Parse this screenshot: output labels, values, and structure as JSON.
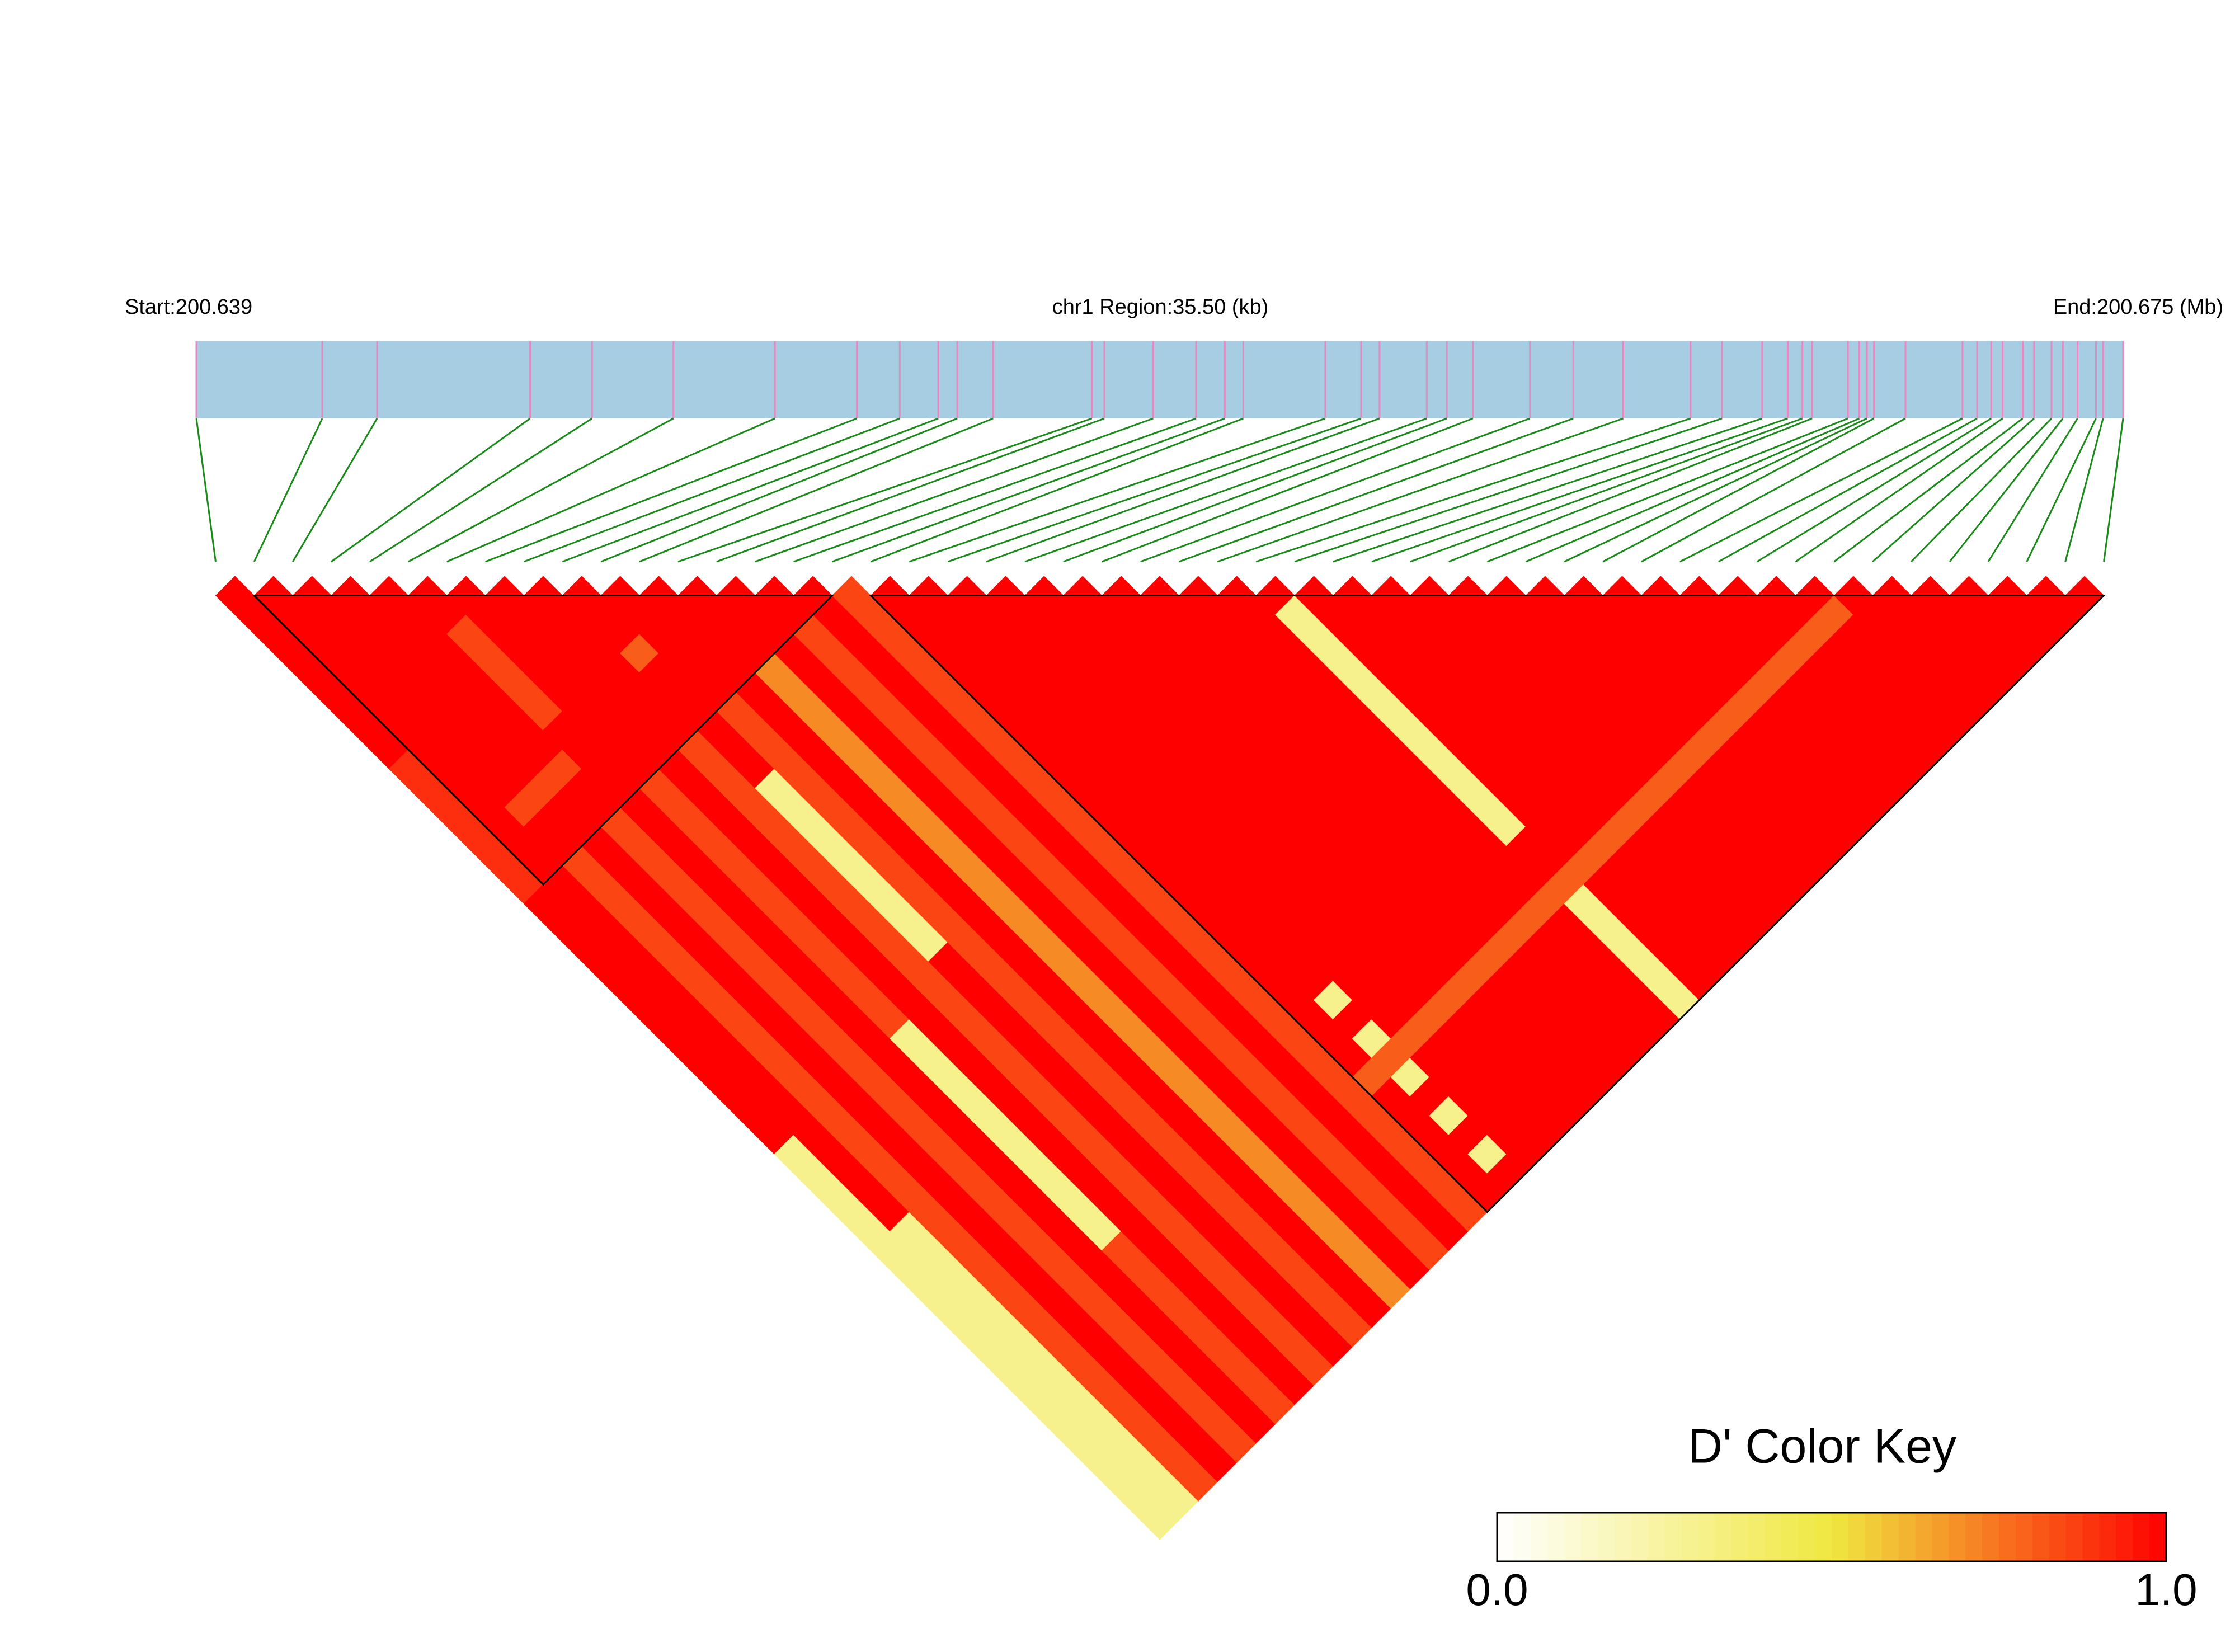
{
  "chart_data": {
    "type": "ld_heatmap",
    "start_label": "Start:200.639",
    "region_label": "chr1 Region:35.50 (kb)",
    "end_label": "End:200.675 (Mb)",
    "xlim": [
      200.639,
      200.6745
    ],
    "positions": [
      200.639,
      200.64132,
      200.64233,
      200.64515,
      200.64629,
      200.64779,
      200.64966,
      200.65117,
      200.65196,
      200.65267,
      200.65302,
      200.65368,
      200.6555,
      200.65573,
      200.65663,
      200.65742,
      200.65795,
      200.65829,
      200.6598,
      200.66046,
      200.6608,
      200.66167,
      200.66204,
      200.66252,
      200.66357,
      200.66437,
      200.66529,
      200.66653,
      200.66711,
      200.66785,
      200.66832,
      200.66859,
      200.66877,
      200.66943,
      200.66964,
      200.66978,
      200.66991,
      200.67049,
      200.67154,
      200.67181,
      200.67207,
      200.67228,
      200.67265,
      200.67286,
      200.67318,
      200.67339,
      200.67366,
      200.674,
      200.67413,
      200.6745
    ],
    "blocks": [
      [
        1,
        16
      ],
      [
        17,
        49
      ]
    ],
    "dprime": [
      [
        1
      ],
      [
        1,
        1
      ],
      [
        1,
        1,
        1
      ],
      [
        1,
        1,
        1,
        1
      ],
      [
        1,
        1,
        1,
        1,
        1
      ],
      [
        1,
        1,
        1,
        1,
        1,
        1
      ],
      [
        1,
        1,
        1,
        1,
        1,
        1,
        1
      ],
      [
        1,
        1,
        1,
        1,
        1,
        0.85,
        1,
        1
      ],
      [
        1,
        1,
        1,
        1,
        1,
        0.85,
        1,
        1,
        1
      ],
      [
        0.9,
        1,
        1,
        1,
        1,
        0.85,
        1,
        1,
        1,
        1
      ],
      [
        0.9,
        1,
        1,
        1,
        1,
        0.85,
        1,
        1,
        1,
        1,
        1
      ],
      [
        0.9,
        1,
        1,
        1,
        1,
        0.85,
        1,
        1,
        1,
        1,
        1,
        1
      ],
      [
        0.9,
        1,
        1,
        1,
        1,
        1,
        1,
        1,
        1,
        0.8,
        1,
        1,
        1
      ],
      [
        0.9,
        1,
        0.85,
        0.85,
        0.85,
        1,
        1,
        1,
        1,
        1,
        1,
        1,
        1,
        1
      ],
      [
        0.9,
        1,
        1,
        1,
        1,
        1,
        1,
        1,
        1,
        1,
        1,
        1,
        1,
        1,
        1
      ],
      [
        0.9,
        1,
        1,
        1,
        1,
        1,
        1,
        1,
        1,
        1,
        1,
        1,
        1,
        1,
        1,
        1
      ],
      [
        1,
        1,
        0.85,
        1,
        0.85,
        1,
        0.85,
        1,
        0.85,
        1,
        0.85,
        1,
        0.7,
        1,
        0.85,
        1,
        0.85
      ],
      [
        1,
        1,
        0.85,
        1,
        0.85,
        1,
        0.85,
        1,
        0.85,
        1,
        0.85,
        1,
        0.7,
        1,
        0.85,
        1,
        0.85,
        1
      ],
      [
        1,
        1,
        0.85,
        1,
        0.85,
        1,
        0.85,
        1,
        0.85,
        1,
        0.85,
        1,
        0.7,
        1,
        0.85,
        1,
        0.85,
        1,
        1
      ],
      [
        1,
        1,
        0.85,
        1,
        0.85,
        1,
        0.85,
        1,
        0.85,
        0.3,
        0.85,
        1,
        0.7,
        1,
        0.85,
        1,
        0.85,
        1,
        1,
        1
      ],
      [
        1,
        1,
        0.85,
        1,
        0.85,
        1,
        0.85,
        1,
        0.85,
        0.3,
        0.85,
        1,
        0.7,
        1,
        0.85,
        1,
        0.85,
        1,
        1,
        1,
        1
      ],
      [
        1,
        1,
        0.85,
        1,
        0.85,
        1,
        0.85,
        1,
        0.85,
        0.3,
        0.85,
        1,
        0.7,
        1,
        0.85,
        1,
        0.85,
        1,
        1,
        1,
        1,
        1
      ],
      [
        1,
        1,
        0.85,
        1,
        0.85,
        1,
        0.85,
        1,
        0.85,
        0.3,
        0.85,
        1,
        0.7,
        1,
        0.85,
        1,
        0.85,
        1,
        1,
        1,
        1,
        1,
        1
      ],
      [
        1,
        1,
        0.85,
        1,
        0.85,
        1,
        0.85,
        1,
        0.85,
        0.3,
        0.85,
        1,
        0.7,
        1,
        0.85,
        1,
        0.85,
        1,
        1,
        1,
        1,
        1,
        1,
        1
      ],
      [
        1,
        1,
        0.85,
        1,
        0.85,
        1,
        0.85,
        1,
        0.85,
        0.3,
        0.85,
        1,
        0.7,
        1,
        0.85,
        1,
        0.85,
        1,
        1,
        1,
        1,
        1,
        1,
        1,
        1
      ],
      [
        1,
        1,
        0.85,
        1,
        0.85,
        1,
        0.85,
        1,
        0.85,
        0.3,
        0.85,
        1,
        0.7,
        1,
        0.85,
        1,
        0.85,
        1,
        1,
        1,
        1,
        1,
        1,
        1,
        1,
        1
      ],
      [
        1,
        1,
        0.85,
        1,
        0.85,
        1,
        0.85,
        1,
        0.85,
        0.3,
        0.85,
        1,
        0.7,
        1,
        0.85,
        1,
        0.85,
        1,
        1,
        1,
        1,
        1,
        1,
        1,
        1,
        1,
        1
      ],
      [
        1,
        1,
        0.85,
        1,
        0.85,
        1,
        0.85,
        1,
        0.85,
        0.3,
        0.85,
        1,
        0.7,
        1,
        0.85,
        1,
        0.85,
        1,
        1,
        1,
        1,
        1,
        1,
        1,
        1,
        1,
        1,
        1
      ],
      [
        1,
        1,
        0.85,
        1,
        0.85,
        1,
        0.85,
        1,
        0.85,
        1,
        0.85,
        1,
        0.7,
        1,
        0.85,
        1,
        0.85,
        1,
        1,
        1,
        1,
        1,
        1,
        1,
        1,
        1,
        1,
        0.3,
        1
      ],
      [
        0.3,
        1,
        0.85,
        1,
        0.85,
        1,
        0.3,
        1,
        0.85,
        1,
        0.85,
        1,
        0.7,
        1,
        0.85,
        1,
        0.85,
        1,
        1,
        1,
        1,
        1,
        1,
        1,
        1,
        1,
        1,
        0.3,
        1,
        1
      ],
      [
        0.3,
        1,
        0.85,
        1,
        0.85,
        1,
        0.3,
        1,
        0.85,
        1,
        0.85,
        1,
        0.7,
        1,
        0.85,
        1,
        0.85,
        1,
        1,
        1,
        1,
        1,
        1,
        1,
        1,
        1,
        1,
        0.3,
        1,
        1,
        1
      ],
      [
        0.3,
        1,
        0.85,
        1,
        0.85,
        1,
        0.3,
        1,
        0.85,
        1,
        0.85,
        1,
        0.7,
        1,
        0.85,
        1,
        0.85,
        1,
        1,
        1,
        1,
        1,
        1,
        1,
        1,
        1,
        1,
        0.3,
        1,
        1,
        1,
        1
      ],
      [
        0.3,
        1,
        0.85,
        1,
        0.85,
        1,
        0.3,
        1,
        0.85,
        1,
        0.85,
        1,
        0.7,
        1,
        0.85,
        1,
        0.85,
        1,
        1,
        1,
        1,
        1,
        1,
        1,
        1,
        1,
        1,
        0.3,
        1,
        1,
        1,
        1,
        1
      ],
      [
        0.3,
        1,
        0.85,
        1,
        0.85,
        1,
        0.3,
        1,
        0.85,
        1,
        0.85,
        1,
        0.7,
        1,
        0.85,
        1,
        0.85,
        1,
        1,
        1,
        1,
        1,
        1,
        1,
        1,
        1,
        1,
        0.3,
        1,
        1,
        1,
        1,
        1,
        1
      ],
      [
        0.3,
        0.3,
        0.85,
        1,
        0.85,
        1,
        0.3,
        1,
        0.85,
        1,
        0.85,
        1,
        0.7,
        1,
        0.85,
        1,
        0.85,
        1,
        1,
        1,
        1,
        1,
        1,
        1,
        1,
        1,
        1,
        0.3,
        1,
        1,
        1,
        1,
        1,
        1,
        1
      ],
      [
        0.3,
        0.3,
        0.85,
        1,
        0.85,
        1,
        0.3,
        1,
        0.85,
        1,
        0.85,
        1,
        0.7,
        1,
        0.85,
        1,
        0.85,
        1,
        1,
        1,
        1,
        1,
        1,
        1,
        1,
        1,
        1,
        0.3,
        1,
        1,
        1,
        1,
        1,
        1,
        1,
        1
      ],
      [
        0.3,
        0.3,
        0.85,
        1,
        0.85,
        1,
        0.3,
        1,
        0.85,
        1,
        0.85,
        1,
        0.7,
        1,
        0.85,
        1,
        0.85,
        1,
        1,
        1,
        1,
        1,
        1,
        1,
        1,
        1,
        1,
        0.3,
        1,
        1,
        1,
        1,
        1,
        1,
        1,
        1,
        1
      ],
      [
        0.3,
        0.3,
        0.85,
        1,
        0.85,
        1,
        0.3,
        1,
        0.85,
        1,
        0.85,
        1,
        0.7,
        1,
        0.85,
        1,
        0.85,
        1,
        1,
        1,
        1,
        1,
        1,
        1,
        1,
        1,
        1,
        0.3,
        1,
        1,
        1,
        1,
        1,
        1,
        1,
        1,
        1,
        1
      ],
      [
        0.3,
        0.3,
        0.85,
        1,
        0.85,
        1,
        0.3,
        1,
        0.85,
        1,
        0.85,
        1,
        0.7,
        1,
        0.85,
        1,
        0.85,
        1,
        1,
        1,
        1,
        1,
        1,
        1,
        1,
        1,
        1,
        0.3,
        1,
        1,
        1,
        1,
        1,
        1,
        1,
        1,
        1,
        1,
        1
      ],
      [
        0.3,
        0.3,
        0.85,
        1,
        0.85,
        1,
        0.3,
        1,
        0.85,
        1,
        0.85,
        1,
        0.7,
        1,
        0.85,
        1,
        0.85,
        1,
        0.3,
        1,
        1,
        1,
        1,
        1,
        1,
        1,
        1,
        0.3,
        1,
        1,
        1,
        1,
        1,
        1,
        1,
        1,
        1,
        1,
        1,
        1
      ],
      [
        0.3,
        0.3,
        0.85,
        1,
        0.85,
        1,
        0.85,
        1,
        0.85,
        1,
        0.85,
        1,
        0.7,
        1,
        0.85,
        1,
        0.85,
        1,
        1,
        1,
        1,
        1,
        1,
        1,
        1,
        1,
        1,
        1,
        1,
        1,
        1,
        1,
        1,
        1,
        1,
        1,
        1,
        1,
        1,
        1,
        1
      ],
      [
        0.3,
        0.3,
        0.85,
        1,
        0.85,
        1,
        0.85,
        1,
        0.85,
        1,
        0.85,
        1,
        0.7,
        1,
        0.85,
        1,
        0.85,
        1,
        0.3,
        1,
        1,
        1,
        1,
        1,
        1,
        1,
        1,
        1,
        1,
        1,
        1,
        1,
        1,
        1,
        1,
        1,
        1,
        1,
        1,
        1,
        1,
        1
      ],
      [
        0.3,
        0.3,
        0.85,
        1,
        0.85,
        1,
        0.85,
        1,
        0.85,
        1,
        0.85,
        1,
        0.7,
        1,
        0.85,
        1,
        0.85,
        0.8,
        0.8,
        0.8,
        0.8,
        0.8,
        0.8,
        0.8,
        0.8,
        0.8,
        0.8,
        0.8,
        0.8,
        0.8,
        0.8,
        0.8,
        0.8,
        0.8,
        0.8,
        0.8,
        0.8,
        0.8,
        0.8,
        0.8,
        0.8,
        0.8,
        1
      ],
      [
        0.3,
        0.3,
        0.85,
        1,
        0.85,
        1,
        0.85,
        1,
        0.85,
        1,
        0.85,
        1,
        0.7,
        1,
        0.85,
        1,
        0.85,
        1,
        0.3,
        1,
        1,
        1,
        1,
        1,
        1,
        1,
        1,
        0.3,
        1,
        1,
        1,
        1,
        1,
        1,
        1,
        1,
        1,
        1,
        1,
        1,
        1,
        1,
        1,
        1
      ],
      [
        0.3,
        0.3,
        0.85,
        1,
        0.85,
        1,
        0.85,
        1,
        0.85,
        1,
        0.85,
        1,
        0.7,
        1,
        0.85,
        1,
        0.85,
        1,
        1,
        1,
        1,
        1,
        1,
        1,
        1,
        1,
        1,
        0.3,
        1,
        1,
        1,
        1,
        1,
        1,
        1,
        1,
        1,
        1,
        1,
        1,
        1,
        1,
        1,
        1,
        1
      ],
      [
        0.3,
        0.3,
        0.85,
        1,
        0.85,
        1,
        0.85,
        1,
        0.85,
        1,
        0.85,
        1,
        0.7,
        1,
        0.85,
        1,
        0.85,
        1,
        0.3,
        1,
        1,
        1,
        1,
        1,
        1,
        1,
        1,
        0.3,
        1,
        1,
        1,
        1,
        1,
        1,
        1,
        1,
        1,
        1,
        1,
        1,
        1,
        1,
        1,
        1,
        1,
        1
      ],
      [
        0.3,
        0.3,
        0.85,
        1,
        0.85,
        1,
        0.85,
        1,
        0.85,
        1,
        0.85,
        1,
        0.7,
        1,
        0.85,
        1,
        0.85,
        1,
        1,
        1,
        1,
        1,
        1,
        1,
        1,
        1,
        1,
        0.3,
        1,
        1,
        1,
        1,
        1,
        1,
        1,
        1,
        1,
        1,
        1,
        1,
        1,
        1,
        1,
        1,
        1,
        1,
        1
      ],
      [
        0.3,
        0.3,
        0.85,
        1,
        0.85,
        1,
        0.85,
        1,
        0.85,
        1,
        0.85,
        1,
        0.7,
        1,
        0.85,
        1,
        0.85,
        1,
        0.3,
        1,
        1,
        1,
        1,
        1,
        1,
        1,
        1,
        0.3,
        1,
        1,
        1,
        1,
        1,
        1,
        1,
        1,
        1,
        1,
        1,
        1,
        1,
        1,
        1,
        1,
        1,
        1,
        1,
        1
      ],
      [
        0.3,
        0.3,
        0.85,
        1,
        0.85,
        1,
        0.85,
        1,
        0.85,
        1,
        0.85,
        1,
        0.7,
        1,
        0.85,
        1,
        0.85,
        1,
        1,
        1,
        1,
        1,
        1,
        1,
        1,
        1,
        1,
        0.3,
        1,
        1,
        1,
        1,
        1,
        1,
        1,
        1,
        1,
        1,
        1,
        1,
        1,
        1,
        1,
        1,
        1,
        1,
        1,
        1,
        1
      ]
    ],
    "color_scale": [
      "#ffffff",
      "#f0e840",
      "#ff0000"
    ],
    "key_title": "D' Color Key",
    "key_ticks": [
      {
        "value": 0,
        "label": "0.0"
      },
      {
        "value": 1,
        "label": "1.0"
      }
    ]
  }
}
